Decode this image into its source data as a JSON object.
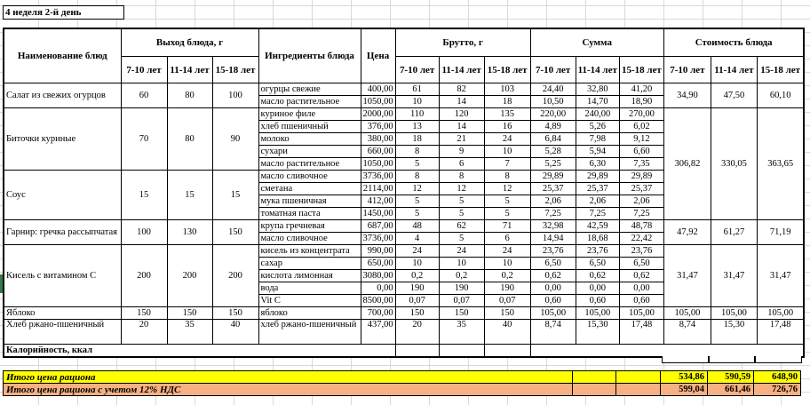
{
  "app": {
    "title_cell": "4 неделя 2-й день"
  },
  "colors": {
    "totals_row1_bg": "#ffff00",
    "totals_row2_bg": "#f5b183",
    "left_margin_cell": "#35794b",
    "gridline": "#d9d9d9",
    "table_border": "#000000"
  },
  "table": {
    "headers": {
      "dish": "Наименование блюд",
      "output": "Выход блюда, г",
      "ingredients": "Ингредиенты блюда",
      "price": "Цена",
      "gross": "Брутто, г",
      "sum": "Сумма",
      "cost": "Стоимость блюда",
      "ages": [
        "7-10 лет",
        "11-14 лет",
        "15-18 лет"
      ]
    },
    "groups": [
      {
        "dish": "Салат из свежих огурцов",
        "outputs": [
          "60",
          "80",
          "100"
        ],
        "cost": {
          "values": [
            "34,90",
            "47,50",
            "60,10"
          ],
          "rowspan": 2
        },
        "rows": [
          {
            "ingredient": "огурцы свежие",
            "price": "400,00",
            "gross": [
              "61",
              "82",
              "103"
            ],
            "sum": [
              "24,40",
              "32,80",
              "41,20"
            ]
          },
          {
            "ingredient": "масло растительное",
            "price": "1050,00",
            "gross": [
              "10",
              "14",
              "18"
            ],
            "sum": [
              "10,50",
              "14,70",
              "18,90"
            ]
          }
        ]
      },
      {
        "dish": "Биточки куриные",
        "outputs": [
          "70",
          "80",
          "90"
        ],
        "cost": {
          "values": [
            "306,82",
            "330,05",
            "363,65"
          ],
          "rowspan": 9
        },
        "rows": [
          {
            "ingredient": "куриное филе",
            "price": "2000,00",
            "gross": [
              "110",
              "120",
              "135"
            ],
            "sum": [
              "220,00",
              "240,00",
              "270,00"
            ]
          },
          {
            "ingredient": "хлеб пшеничный",
            "price": "376,00",
            "gross": [
              "13",
              "14",
              "16"
            ],
            "sum": [
              "4,89",
              "5,26",
              "6,02"
            ]
          },
          {
            "ingredient": "молоко",
            "price": "380,00",
            "gross": [
              "18",
              "21",
              "24"
            ],
            "sum": [
              "6,84",
              "7,98",
              "9,12"
            ]
          },
          {
            "ingredient": "сухари",
            "price": "660,00",
            "gross": [
              "8",
              "9",
              "10"
            ],
            "sum": [
              "5,28",
              "5,94",
              "6,60"
            ]
          },
          {
            "ingredient": "масло растительное",
            "price": "1050,00",
            "gross": [
              "5",
              "6",
              "7"
            ],
            "sum": [
              "5,25",
              "6,30",
              "7,35"
            ]
          }
        ]
      },
      {
        "dish": "Соус",
        "outputs": [
          "15",
          "15",
          "15"
        ],
        "cost": null,
        "rows": [
          {
            "ingredient": "масло сливочное",
            "price": "3736,00",
            "gross": [
              "8",
              "8",
              "8"
            ],
            "sum": [
              "29,89",
              "29,89",
              "29,89"
            ]
          },
          {
            "ingredient": "сметана",
            "price": "2114,00",
            "gross": [
              "12",
              "12",
              "12"
            ],
            "sum": [
              "25,37",
              "25,37",
              "25,37"
            ]
          },
          {
            "ingredient": "мука пшеничная",
            "price": "412,00",
            "gross": [
              "5",
              "5",
              "5"
            ],
            "sum": [
              "2,06",
              "2,06",
              "2,06"
            ]
          },
          {
            "ingredient": "томатная паста",
            "price": "1450,00",
            "gross": [
              "5",
              "5",
              "5"
            ],
            "sum": [
              "7,25",
              "7,25",
              "7,25"
            ]
          }
        ]
      },
      {
        "dish": "Гарнир: гречка рассыпчатая",
        "outputs": [
          "100",
          "130",
          "150"
        ],
        "cost": {
          "values": [
            "47,92",
            "61,27",
            "71,19"
          ],
          "rowspan": 2
        },
        "rows": [
          {
            "ingredient": "крупа гречневая",
            "price": "687,00",
            "gross": [
              "48",
              "62",
              "71"
            ],
            "sum": [
              "32,98",
              "42,59",
              "48,78"
            ]
          },
          {
            "ingredient": "масло сливочное",
            "price": "3736,00",
            "gross": [
              "4",
              "5",
              "6"
            ],
            "sum": [
              "14,94",
              "18,68",
              "22,42"
            ]
          }
        ]
      },
      {
        "dish": "Кисель с витамином С",
        "outputs": [
          "200",
          "200",
          "200"
        ],
        "cost": {
          "values": [
            "31,47",
            "31,47",
            "31,47"
          ],
          "rowspan": 5
        },
        "rows": [
          {
            "ingredient": "кисель из концентрата",
            "price": "990,00",
            "gross": [
              "24",
              "24",
              "24"
            ],
            "sum": [
              "23,76",
              "23,76",
              "23,76"
            ]
          },
          {
            "ingredient": "сахар",
            "price": "650,00",
            "gross": [
              "10",
              "10",
              "10"
            ],
            "sum": [
              "6,50",
              "6,50",
              "6,50"
            ]
          },
          {
            "ingredient": "кислота лимонная",
            "price": "3080,00",
            "gross": [
              "0,2",
              "0,2",
              "0,2"
            ],
            "sum": [
              "0,62",
              "0,62",
              "0,62"
            ]
          },
          {
            "ingredient": "вода",
            "price": "0,00",
            "gross": [
              "190",
              "190",
              "190"
            ],
            "sum": [
              "0,00",
              "0,00",
              "0,00"
            ]
          },
          {
            "ingredient": "Vit C",
            "price": "8500,00",
            "gross": [
              "0,07",
              "0,07",
              "0,07"
            ],
            "sum": [
              "0,60",
              "0,60",
              "0,60"
            ]
          }
        ]
      },
      {
        "dish": "Яблоко",
        "outputs": [
          "150",
          "150",
          "150"
        ],
        "cost": {
          "values": [
            "105,00",
            "105,00",
            "105,00"
          ],
          "rowspan": 1
        },
        "rows": [
          {
            "ingredient": "яблоко",
            "price": "700,00",
            "gross": [
              "150",
              "150",
              "150"
            ],
            "sum": [
              "105,00",
              "105,00",
              "105,00"
            ]
          }
        ]
      },
      {
        "dish": "Хлеб ржано-пшеничный",
        "outputs": [
          "20",
          "35",
          "40"
        ],
        "cost": {
          "values": [
            "8,74",
            "15,30",
            "17,48"
          ],
          "rowspan": 1
        },
        "tall": true,
        "rows": [
          {
            "ingredient": "хлеб ржано-пшеничный",
            "price": "437,00",
            "gross": [
              "20",
              "35",
              "40"
            ],
            "sum": [
              "8,74",
              "15,30",
              "17,48"
            ]
          }
        ]
      }
    ],
    "calories_label": "Калорийность, ккал",
    "totals": [
      {
        "label": "Итого цена рациона",
        "values": [
          "534,86",
          "590,59",
          "648,90"
        ]
      },
      {
        "label": "Итого цена рациона с учетом 12% НДС",
        "values": [
          "599,04",
          "661,46",
          "726,76"
        ]
      }
    ]
  }
}
